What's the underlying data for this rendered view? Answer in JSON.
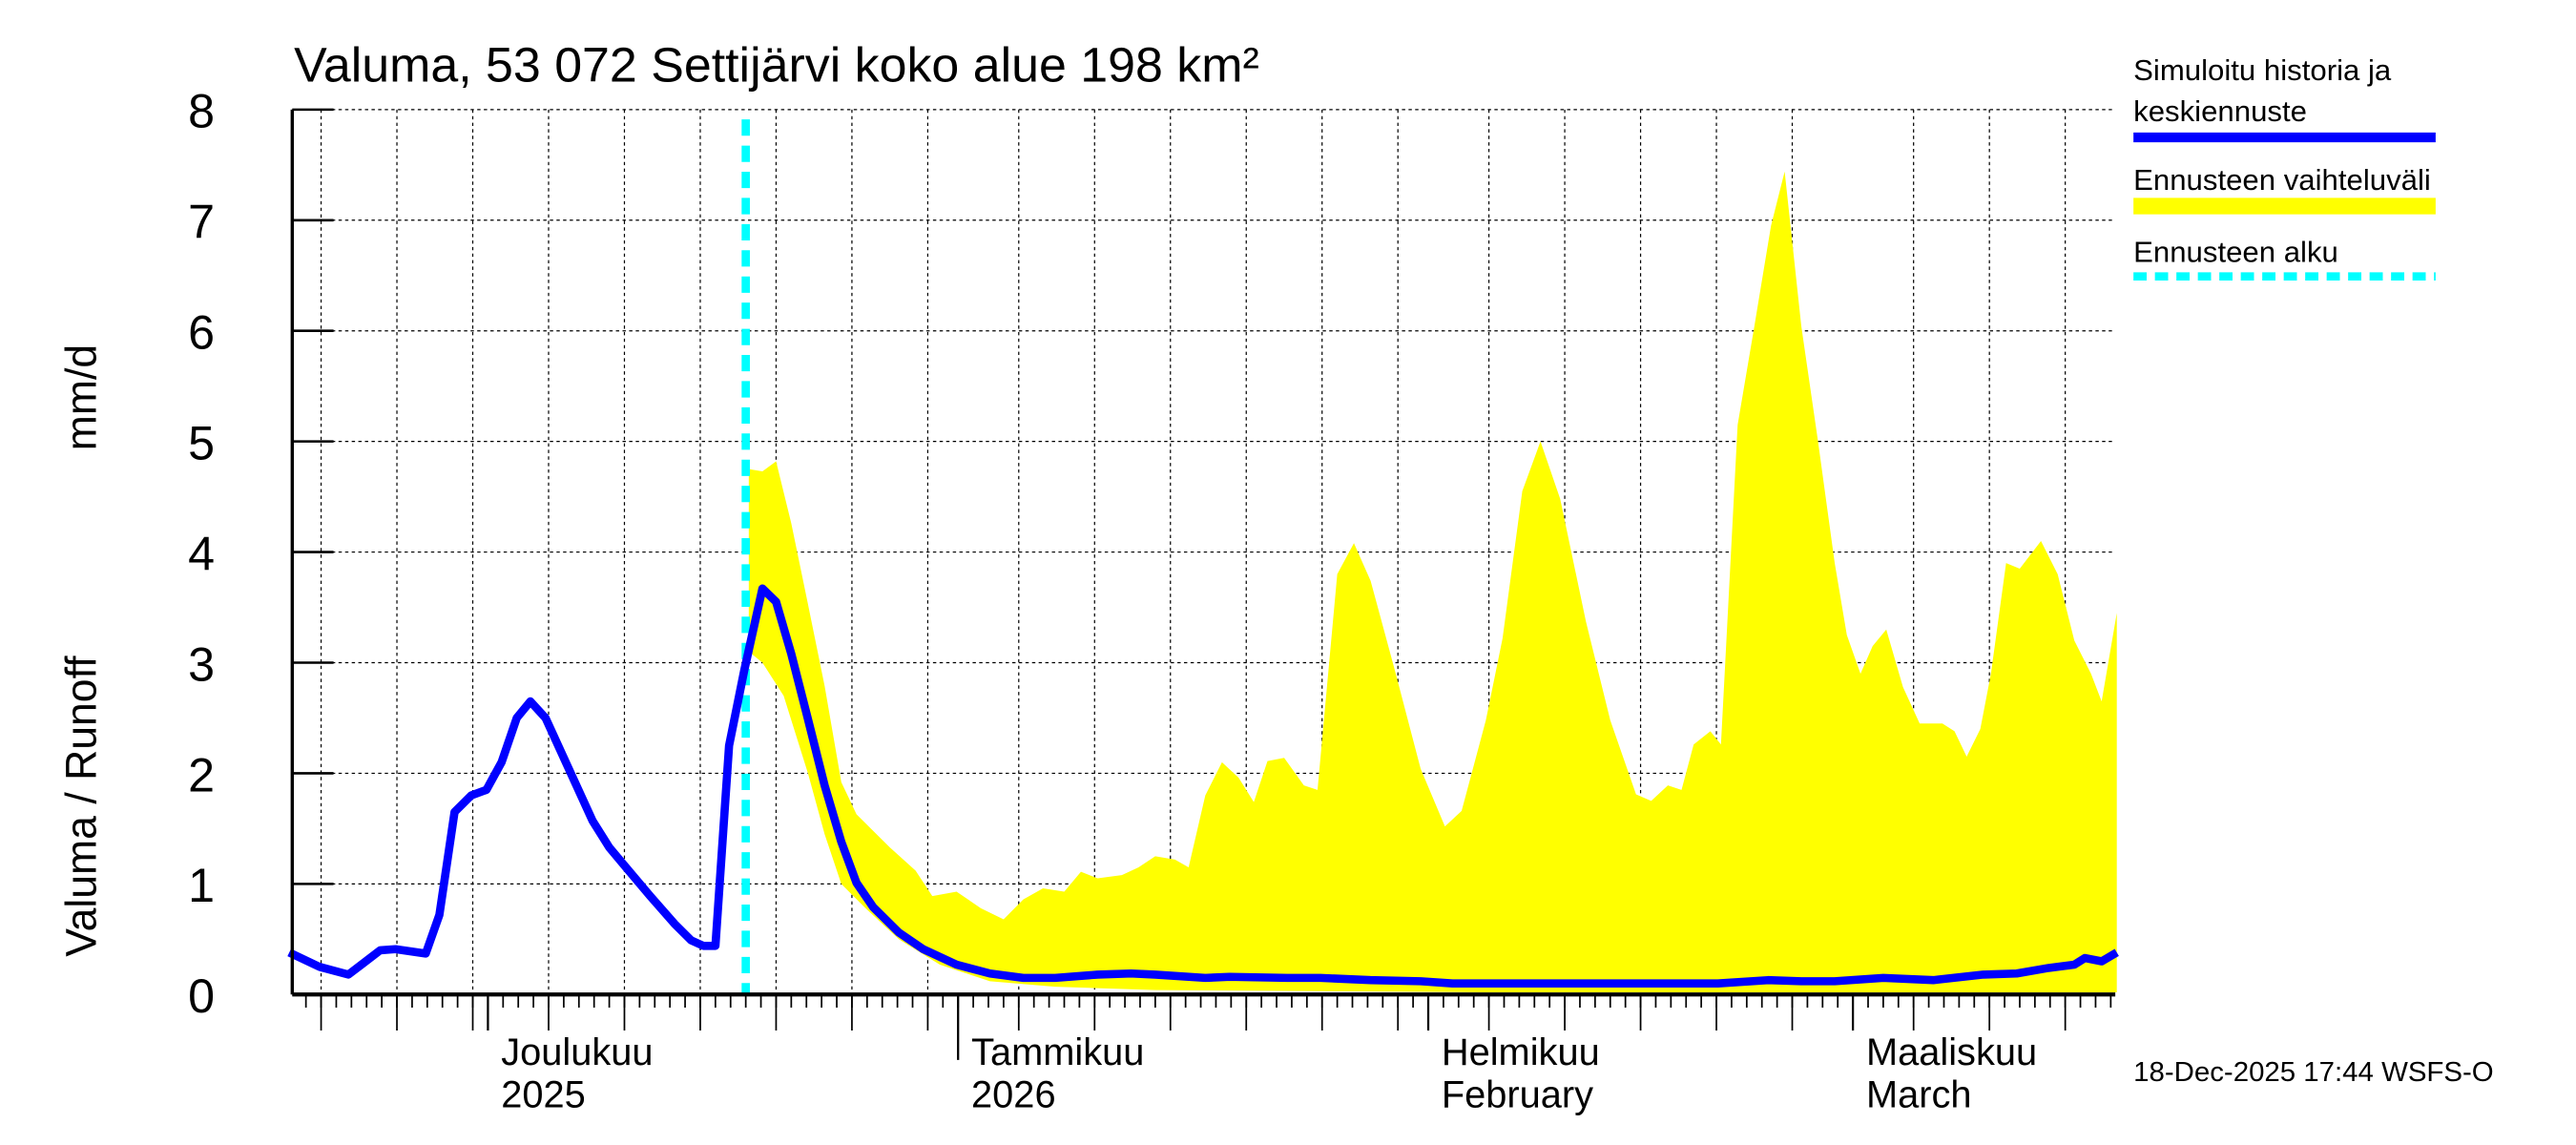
{
  "chart_data": {
    "type": "area",
    "title": "Valuma, 53 072 Settijärvi koko alue 198 km²",
    "ylabel": "Valuma / Runoff",
    "yunit": "mm/d",
    "x_unit": "days since 2025-12-01",
    "xlim": [
      -12.9,
      107.3
    ],
    "ylim": [
      0,
      8
    ],
    "yticks": [
      "0",
      "1",
      "2",
      "3",
      "4",
      "5",
      "6",
      "7",
      "8"
    ],
    "grid": true,
    "month_labels": [
      {
        "day": 0,
        "line1": "Joulukuu",
        "line2": "2025"
      },
      {
        "day": 31,
        "line1": "Tammikuu",
        "line2": "2026"
      },
      {
        "day": 62,
        "line1": "Helmikuu",
        "line2": "February"
      },
      {
        "day": 90,
        "line1": "Maaliskuu",
        "line2": "March"
      }
    ],
    "forecast_start_day": 17,
    "legend_placement": "right",
    "legend": [
      {
        "label_line1": "Simuloitu historia ja",
        "label_line2": "keskiennuste",
        "color": "#0000ff",
        "style": "solid"
      },
      {
        "label_line1": "Ennusteen vaihteluväli",
        "color": "#ffff00",
        "style": "band"
      },
      {
        "label_line1": "Ennusteen alku",
        "color": "#00ffff",
        "style": "dashed"
      }
    ],
    "series": [
      {
        "name": "Simuloitu historia ja keskiennuste",
        "color": "#0000ff",
        "points": [
          [
            -13.1,
            0.38
          ],
          [
            -11.1,
            0.25
          ],
          [
            -9.2,
            0.18
          ],
          [
            -7.1,
            0.4
          ],
          [
            -6.1,
            0.41
          ],
          [
            -4.1,
            0.37
          ],
          [
            -3.2,
            0.72
          ],
          [
            -2.2,
            1.65
          ],
          [
            -1.1,
            1.8
          ],
          [
            -0.1,
            1.85
          ],
          [
            0.9,
            2.1
          ],
          [
            1.9,
            2.5
          ],
          [
            2.8,
            2.65
          ],
          [
            3.8,
            2.5
          ],
          [
            4.8,
            2.2
          ],
          [
            5.8,
            1.9
          ],
          [
            6.9,
            1.57
          ],
          [
            8.0,
            1.33
          ],
          [
            9.1,
            1.15
          ],
          [
            10.7,
            0.89
          ],
          [
            12.3,
            0.64
          ],
          [
            13.4,
            0.49
          ],
          [
            14.2,
            0.44
          ],
          [
            15.0,
            0.44
          ],
          [
            15.9,
            2.25
          ],
          [
            16.9,
            2.93
          ],
          [
            18.1,
            3.67
          ],
          [
            19.0,
            3.55
          ],
          [
            20.0,
            3.08
          ],
          [
            21.1,
            2.49
          ],
          [
            22.2,
            1.89
          ],
          [
            23.3,
            1.38
          ],
          [
            24.3,
            1.01
          ],
          [
            25.4,
            0.79
          ],
          [
            27.1,
            0.56
          ],
          [
            28.7,
            0.41
          ],
          [
            30.9,
            0.27
          ],
          [
            33.1,
            0.19
          ],
          [
            35.3,
            0.15
          ],
          [
            37.4,
            0.15
          ],
          [
            40.2,
            0.18
          ],
          [
            42.4,
            0.19
          ],
          [
            44.0,
            0.18
          ],
          [
            47.3,
            0.15
          ],
          [
            48.9,
            0.16
          ],
          [
            52.7,
            0.15
          ],
          [
            54.9,
            0.15
          ],
          [
            58.2,
            0.13
          ],
          [
            61.5,
            0.12
          ],
          [
            63.6,
            0.1
          ],
          [
            71.3,
            0.1
          ],
          [
            81.1,
            0.1
          ],
          [
            84.4,
            0.13
          ],
          [
            86.6,
            0.12
          ],
          [
            88.8,
            0.12
          ],
          [
            92.0,
            0.15
          ],
          [
            95.3,
            0.13
          ],
          [
            98.6,
            0.18
          ],
          [
            100.8,
            0.19
          ],
          [
            102.9,
            0.24
          ],
          [
            104.6,
            0.27
          ],
          [
            105.3,
            0.33
          ],
          [
            106.4,
            0.3
          ],
          [
            107.4,
            0.38
          ]
        ]
      },
      {
        "name": "Ennusteen vaihteluväli (upper)",
        "color": "#ffff00",
        "points": [
          [
            17.2,
            4.75
          ],
          [
            18.1,
            4.73
          ],
          [
            19.0,
            4.82
          ],
          [
            20.0,
            4.26
          ],
          [
            21.1,
            3.53
          ],
          [
            22.2,
            2.79
          ],
          [
            23.3,
            1.92
          ],
          [
            24.3,
            1.63
          ],
          [
            26.5,
            1.33
          ],
          [
            28.2,
            1.12
          ],
          [
            29.3,
            0.89
          ],
          [
            30.9,
            0.93
          ],
          [
            32.5,
            0.78
          ],
          [
            34.0,
            0.68
          ],
          [
            35.3,
            0.86
          ],
          [
            36.6,
            0.96
          ],
          [
            38.0,
            0.93
          ],
          [
            39.1,
            1.11
          ],
          [
            40.2,
            1.05
          ],
          [
            41.8,
            1.08
          ],
          [
            42.9,
            1.15
          ],
          [
            44.0,
            1.25
          ],
          [
            45.3,
            1.22
          ],
          [
            46.2,
            1.15
          ],
          [
            47.3,
            1.8
          ],
          [
            48.4,
            2.1
          ],
          [
            49.5,
            1.96
          ],
          [
            50.5,
            1.74
          ],
          [
            51.4,
            2.11
          ],
          [
            52.5,
            2.14
          ],
          [
            53.8,
            1.89
          ],
          [
            54.7,
            1.85
          ],
          [
            56.0,
            3.8
          ],
          [
            57.1,
            4.08
          ],
          [
            58.2,
            3.74
          ],
          [
            59.8,
            2.93
          ],
          [
            61.5,
            2.04
          ],
          [
            63.1,
            1.52
          ],
          [
            64.2,
            1.66
          ],
          [
            65.8,
            2.48
          ],
          [
            66.9,
            3.22
          ],
          [
            68.2,
            4.55
          ],
          [
            69.4,
            5.0
          ],
          [
            70.7,
            4.48
          ],
          [
            72.4,
            3.37
          ],
          [
            74.0,
            2.48
          ],
          [
            75.7,
            1.81
          ],
          [
            76.7,
            1.75
          ],
          [
            77.8,
            1.89
          ],
          [
            78.7,
            1.85
          ],
          [
            79.5,
            2.26
          ],
          [
            80.6,
            2.38
          ],
          [
            81.3,
            2.26
          ],
          [
            82.4,
            5.15
          ],
          [
            83.5,
            6.04
          ],
          [
            84.6,
            6.95
          ],
          [
            85.5,
            7.44
          ],
          [
            86.6,
            6.04
          ],
          [
            87.7,
            5.0
          ],
          [
            88.8,
            3.9
          ],
          [
            89.6,
            3.25
          ],
          [
            90.5,
            2.9
          ],
          [
            91.3,
            3.15
          ],
          [
            92.2,
            3.3
          ],
          [
            93.3,
            2.78
          ],
          [
            94.4,
            2.45
          ],
          [
            95.9,
            2.45
          ],
          [
            96.7,
            2.38
          ],
          [
            97.5,
            2.15
          ],
          [
            98.4,
            2.4
          ],
          [
            99.1,
            2.9
          ],
          [
            100.1,
            3.9
          ],
          [
            101.0,
            3.85
          ],
          [
            102.4,
            4.1
          ],
          [
            103.5,
            3.8
          ],
          [
            104.6,
            3.2
          ],
          [
            105.7,
            2.9
          ],
          [
            106.4,
            2.65
          ],
          [
            107.4,
            3.45
          ]
        ]
      },
      {
        "name": "Ennusteen vaihteluväli (lower)",
        "color": "#ffff00",
        "points": [
          [
            17.2,
            3.1
          ],
          [
            18.1,
            3.0
          ],
          [
            19.5,
            2.7
          ],
          [
            21.1,
            2.0
          ],
          [
            22.2,
            1.45
          ],
          [
            23.3,
            1.0
          ],
          [
            24.9,
            0.78
          ],
          [
            27.1,
            0.5
          ],
          [
            29.8,
            0.27
          ],
          [
            33.1,
            0.12
          ],
          [
            37.4,
            0.07
          ],
          [
            44.0,
            0.04
          ],
          [
            55.0,
            0.03
          ],
          [
            65.8,
            0.02
          ],
          [
            107.4,
            0.02
          ]
        ]
      }
    ]
  },
  "footer": "18-Dec-2025 17:44 WSFS-O"
}
